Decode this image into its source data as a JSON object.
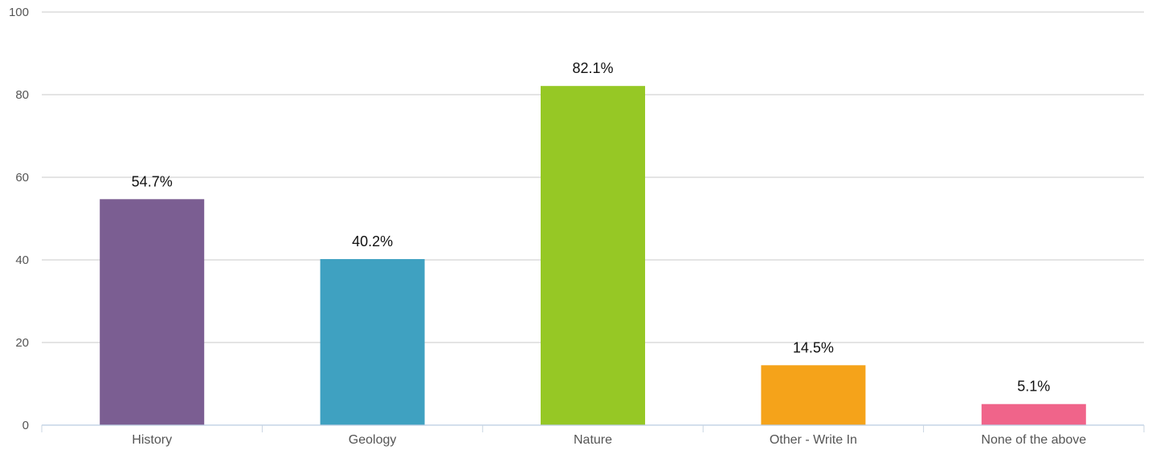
{
  "chart_data": {
    "type": "bar",
    "categories": [
      "History",
      "Geology",
      "Nature",
      "Other - Write In",
      "None of the above"
    ],
    "values": [
      54.7,
      40.2,
      82.1,
      14.5,
      5.1
    ],
    "data_labels": [
      "54.7%",
      "40.2%",
      "82.1%",
      "14.5%",
      "5.1%"
    ],
    "colors": [
      "#7b5e92",
      "#3fa1c1",
      "#96c825",
      "#f5a31a",
      "#f0648a"
    ],
    "y_ticks": [
      0,
      20,
      40,
      60,
      80,
      100
    ],
    "ylim": [
      0,
      100
    ],
    "grid": true,
    "legend": "none",
    "title": "",
    "xlabel": "",
    "ylabel": ""
  }
}
